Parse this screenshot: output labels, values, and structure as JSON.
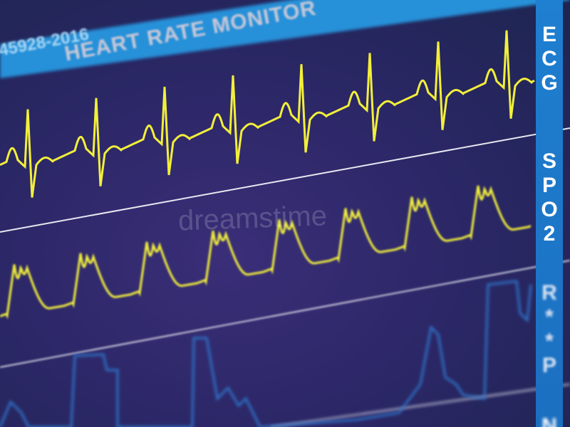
{
  "header": {
    "code": "45928-2016",
    "title": "HEART RATE MONITOR"
  },
  "channels": [
    {
      "label": [
        "E",
        "C",
        "G"
      ]
    },
    {
      "label": [
        "S",
        "P",
        "O",
        "2"
      ]
    },
    {
      "label": [
        "R",
        "*",
        "*",
        "P"
      ]
    },
    {
      "label": [
        "N"
      ]
    }
  ],
  "watermark": "dreamstime",
  "colors": {
    "trace": "#f2ef3a",
    "band": "#1f7fd0",
    "third_trace": "#2f73c8",
    "background": "#2b2766"
  }
}
